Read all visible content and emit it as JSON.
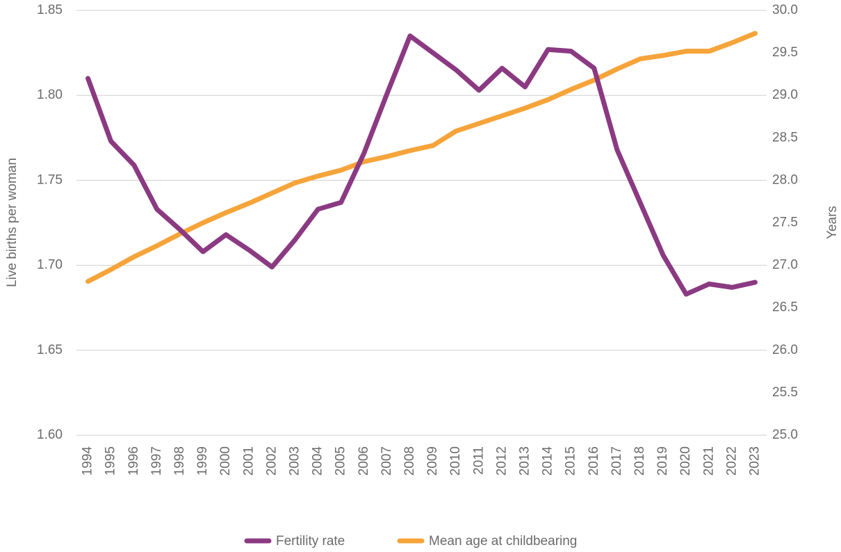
{
  "chart_data": {
    "type": "line",
    "categories": [
      "1994",
      "1995",
      "1996",
      "1997",
      "1998",
      "1999",
      "2000",
      "2001",
      "2002",
      "2003",
      "2004",
      "2005",
      "2006",
      "2007",
      "2008",
      "2009",
      "2010",
      "2011",
      "2012",
      "2013",
      "2014",
      "2015",
      "2016",
      "2017",
      "2018",
      "2019",
      "2020",
      "2021",
      "2022",
      "2023"
    ],
    "series": [
      {
        "name": "Fertility rate",
        "color": "#8b3a82",
        "axis": "y",
        "values": [
          1.81,
          1.773,
          1.759,
          1.733,
          1.721,
          1.708,
          1.718,
          1.709,
          1.699,
          1.715,
          1.733,
          1.737,
          1.766,
          1.801,
          1.835,
          1.825,
          1.815,
          1.803,
          1.816,
          1.805,
          1.827,
          1.826,
          1.816,
          1.768,
          1.737,
          1.706,
          1.683,
          1.689,
          1.687,
          1.69
        ]
      },
      {
        "name": "Mean age at childbearing",
        "color": "#f6a43a",
        "axis": "y2",
        "values": [
          26.81,
          26.95,
          27.1,
          27.23,
          27.37,
          27.5,
          27.62,
          27.73,
          27.85,
          27.97,
          28.05,
          28.12,
          28.22,
          28.28,
          28.35,
          28.41,
          28.58,
          28.67,
          28.76,
          28.85,
          28.95,
          29.07,
          29.18,
          29.31,
          29.43,
          29.47,
          29.52,
          29.52,
          29.62,
          29.73
        ]
      }
    ],
    "ylabel": "Live births per woman",
    "y2label": "Years",
    "ylim": [
      1.6,
      1.85
    ],
    "yticks": [
      {
        "value": 1.6,
        "label": "1.60"
      },
      {
        "value": 1.65,
        "label": "1.65"
      },
      {
        "value": 1.7,
        "label": "1.70"
      },
      {
        "value": 1.75,
        "label": "1.75"
      },
      {
        "value": 1.8,
        "label": "1.80"
      },
      {
        "value": 1.85,
        "label": "1.85"
      }
    ],
    "y2lim": [
      25,
      30
    ],
    "y2ticks": [
      {
        "value": 25,
        "label": "25.0"
      },
      {
        "value": 25.5,
        "label": "25.5"
      },
      {
        "value": 26,
        "label": "26.0"
      },
      {
        "value": 26.5,
        "label": "26.5"
      },
      {
        "value": 27,
        "label": "27.0"
      },
      {
        "value": 27.5,
        "label": "27.5"
      },
      {
        "value": 28,
        "label": "28.0"
      },
      {
        "value": 28.5,
        "label": "28.5"
      },
      {
        "value": 29,
        "label": "29.0"
      },
      {
        "value": 29.5,
        "label": "29.5"
      },
      {
        "value": 30,
        "label": "30.0"
      }
    ],
    "grid": true,
    "legend": "bottom"
  }
}
